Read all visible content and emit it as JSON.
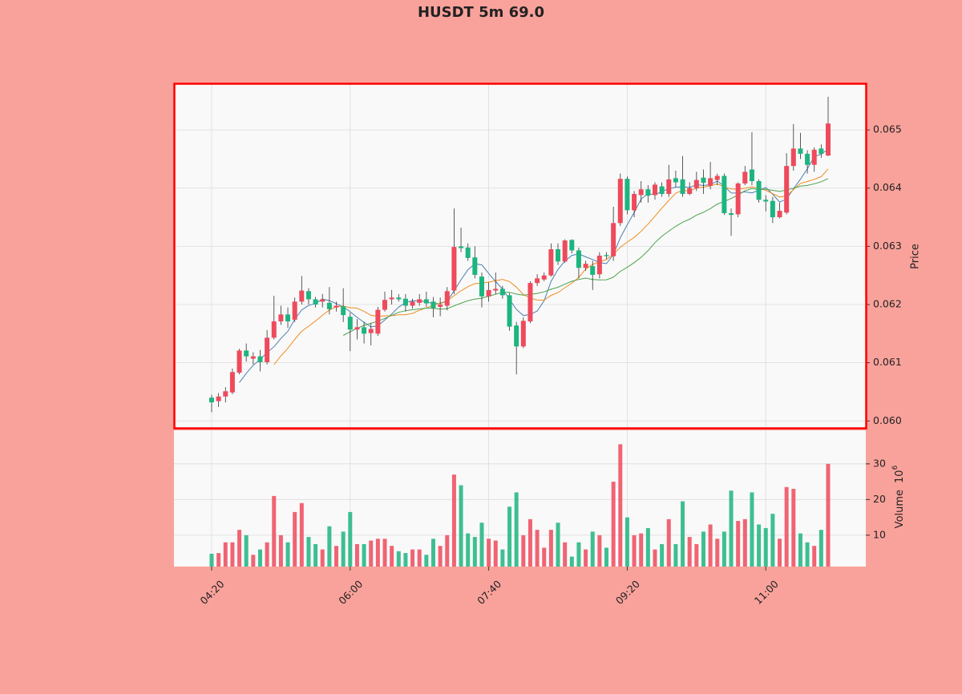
{
  "chart_data": {
    "type": "candlestick",
    "title": "HUSDT 5m 69.0",
    "categories": [
      "04:20",
      null,
      null,
      null,
      null,
      null,
      null,
      null,
      null,
      null,
      null,
      null,
      null,
      null,
      null,
      null,
      null,
      null,
      null,
      null,
      "06:00",
      null,
      null,
      null,
      null,
      null,
      null,
      null,
      null,
      null,
      null,
      null,
      null,
      null,
      null,
      null,
      null,
      null,
      null,
      null,
      "07:40",
      null,
      null,
      null,
      null,
      null,
      null,
      null,
      null,
      null,
      null,
      null,
      null,
      null,
      null,
      null,
      null,
      null,
      null,
      null,
      "09:20",
      null,
      null,
      null,
      null,
      null,
      null,
      null,
      null,
      null,
      null,
      null,
      null,
      null,
      null,
      null,
      null,
      null,
      null,
      null,
      "11:00",
      null,
      null,
      null,
      null,
      null,
      null,
      null,
      null,
      null
    ],
    "open": [
      0.0604,
      0.06034,
      0.06042,
      0.06049,
      0.06083,
      0.06121,
      0.06107,
      0.06111,
      0.06101,
      0.06143,
      0.06171,
      0.06183,
      0.06174,
      0.06205,
      0.06223,
      0.06209,
      0.06205,
      0.06203,
      0.06195,
      0.06197,
      0.06179,
      0.06157,
      0.06161,
      0.06151,
      0.0615,
      0.06191,
      0.06209,
      0.06212,
      0.0621,
      0.06198,
      0.06203,
      0.06209,
      0.06205,
      0.06196,
      0.06198,
      0.06224,
      0.063,
      0.06298,
      0.06281,
      0.06248,
      0.06214,
      0.06224,
      0.06227,
      0.06216,
      0.06164,
      0.06128,
      0.06171,
      0.06237,
      0.06243,
      0.0625,
      0.06295,
      0.06274,
      0.06311,
      0.06293,
      0.06263,
      0.06266,
      0.06252,
      0.06285,
      0.06283,
      0.0634,
      0.06416,
      0.06362,
      0.06388,
      0.06398,
      0.06388,
      0.06403,
      0.0639,
      0.06417,
      0.06415,
      0.0639,
      0.064,
      0.06418,
      0.06404,
      0.06414,
      0.06421,
      0.06357,
      0.06355,
      0.06408,
      0.06432,
      0.06412,
      0.0638,
      0.06378,
      0.0635,
      0.06358,
      0.06438,
      0.06468,
      0.06459,
      0.0644,
      0.06468,
      0.06456
    ],
    "high": [
      0.06045,
      0.06048,
      0.06058,
      0.0609,
      0.06124,
      0.06133,
      0.06118,
      0.06122,
      0.06156,
      0.06215,
      0.06198,
      0.06195,
      0.06212,
      0.06249,
      0.06228,
      0.06213,
      0.06218,
      0.0623,
      0.06205,
      0.06228,
      0.06186,
      0.06175,
      0.0617,
      0.06168,
      0.06196,
      0.06222,
      0.06225,
      0.06218,
      0.06218,
      0.0621,
      0.06218,
      0.06222,
      0.06213,
      0.06212,
      0.0623,
      0.06365,
      0.06332,
      0.06305,
      0.063,
      0.06255,
      0.06238,
      0.06255,
      0.06232,
      0.0622,
      0.0617,
      0.06178,
      0.0624,
      0.06252,
      0.06255,
      0.06305,
      0.06305,
      0.06312,
      0.06312,
      0.06298,
      0.06275,
      0.06275,
      0.0629,
      0.0629,
      0.06368,
      0.06425,
      0.0642,
      0.06395,
      0.06412,
      0.06405,
      0.0641,
      0.0641,
      0.0644,
      0.0643,
      0.06455,
      0.0641,
      0.06428,
      0.06432,
      0.06445,
      0.06425,
      0.06425,
      0.06365,
      0.0641,
      0.06438,
      0.06496,
      0.06415,
      0.06388,
      0.06385,
      0.06375,
      0.0646,
      0.0651,
      0.06495,
      0.06465,
      0.0647,
      0.06475,
      0.06557
    ],
    "low": [
      0.06015,
      0.06024,
      0.06032,
      0.06046,
      0.0608,
      0.06102,
      0.06097,
      0.06085,
      0.06097,
      0.0614,
      0.06165,
      0.0616,
      0.0617,
      0.062,
      0.062,
      0.06195,
      0.06195,
      0.06183,
      0.06188,
      0.0617,
      0.0612,
      0.0614,
      0.06133,
      0.0613,
      0.06146,
      0.06188,
      0.062,
      0.06205,
      0.06188,
      0.06193,
      0.06198,
      0.06196,
      0.06178,
      0.0618,
      0.0619,
      0.06218,
      0.0629,
      0.06275,
      0.06245,
      0.06195,
      0.06205,
      0.06218,
      0.0621,
      0.06155,
      0.0608,
      0.06125,
      0.06168,
      0.06232,
      0.0624,
      0.06248,
      0.06268,
      0.06272,
      0.06288,
      0.06245,
      0.06258,
      0.06225,
      0.06245,
      0.06278,
      0.06275,
      0.06335,
      0.06355,
      0.0635,
      0.06375,
      0.06375,
      0.0638,
      0.06385,
      0.06385,
      0.06402,
      0.06385,
      0.06388,
      0.06395,
      0.0639,
      0.06398,
      0.06405,
      0.06354,
      0.06318,
      0.0635,
      0.06405,
      0.06405,
      0.06375,
      0.0636,
      0.0634,
      0.06348,
      0.06355,
      0.0643,
      0.0645,
      0.06425,
      0.06428,
      0.06452,
      0.06455
    ],
    "close": [
      0.06032,
      0.06042,
      0.06051,
      0.06084,
      0.06121,
      0.06111,
      0.06111,
      0.06101,
      0.06143,
      0.06171,
      0.06183,
      0.06171,
      0.06205,
      0.06224,
      0.06209,
      0.062,
      0.06209,
      0.06192,
      0.06198,
      0.06182,
      0.06157,
      0.06161,
      0.0615,
      0.06158,
      0.06191,
      0.06208,
      0.06212,
      0.06209,
      0.06198,
      0.06205,
      0.06209,
      0.06202,
      0.06194,
      0.062,
      0.06223,
      0.06299,
      0.06297,
      0.0628,
      0.06251,
      0.06214,
      0.06225,
      0.06227,
      0.06216,
      0.06162,
      0.06128,
      0.06172,
      0.06237,
      0.06245,
      0.0625,
      0.06295,
      0.06274,
      0.0631,
      0.06293,
      0.06263,
      0.0627,
      0.06251,
      0.06284,
      0.06283,
      0.0634,
      0.06416,
      0.06362,
      0.0639,
      0.06398,
      0.06387,
      0.06406,
      0.0639,
      0.06415,
      0.0641,
      0.0639,
      0.064,
      0.06414,
      0.06409,
      0.06417,
      0.06421,
      0.06357,
      0.06354,
      0.06408,
      0.06428,
      0.06412,
      0.0638,
      0.06377,
      0.0635,
      0.06361,
      0.06438,
      0.06468,
      0.06459,
      0.0644,
      0.06466,
      0.06459,
      0.06511
    ],
    "volume": [
      4.8,
      5,
      8,
      8,
      11.5,
      10,
      4.5,
      6,
      8,
      21,
      10,
      8,
      16.5,
      19,
      9.5,
      7.5,
      6,
      12.5,
      7,
      11,
      16.5,
      7.5,
      7.5,
      8.5,
      9,
      9,
      7,
      5.5,
      5,
      6,
      6,
      4.5,
      9,
      7,
      10,
      27,
      24,
      10.5,
      9.5,
      13.5,
      9,
      8.5,
      6,
      18,
      22,
      10,
      14.5,
      11.5,
      6.5,
      11.5,
      13.5,
      8,
      4,
      8,
      6,
      11,
      10,
      6.5,
      25,
      35.5,
      15,
      10,
      10.5,
      12,
      6,
      7.5,
      14.5,
      7.5,
      19.5,
      9.5,
      7.5,
      11,
      13,
      9,
      11,
      22.5,
      14,
      14.5,
      22,
      13,
      12,
      16,
      9,
      23.5,
      23,
      10.5,
      8,
      7,
      11.5,
      30
    ],
    "up_color": "#ef4a5c",
    "down_color": "#1db57f",
    "wick_color": "#333333",
    "moving_averages": [
      {
        "window": 5,
        "color": "#4a7fb0"
      },
      {
        "window": 10,
        "color": "#f08c1e"
      },
      {
        "window": 20,
        "color": "#4ca34c"
      }
    ],
    "ylim": [
      0.05988,
      0.0658
    ],
    "yticks": [
      {
        "value": 0.06,
        "label": "0.060"
      },
      {
        "value": 0.061,
        "label": "0.061"
      },
      {
        "value": 0.062,
        "label": "0.062"
      },
      {
        "value": 0.063,
        "label": "0.063"
      },
      {
        "value": 0.064,
        "label": "0.064"
      },
      {
        "value": 0.065,
        "label": "0.065"
      }
    ],
    "ylabel": "Price",
    "volume_ylim": [
      1.2,
      39.4
    ],
    "volume_yticks": [
      10,
      20,
      30
    ],
    "volume_label": "Volume",
    "volume_unit": {
      "base": "10",
      "exponent": "6"
    },
    "grid": true
  }
}
